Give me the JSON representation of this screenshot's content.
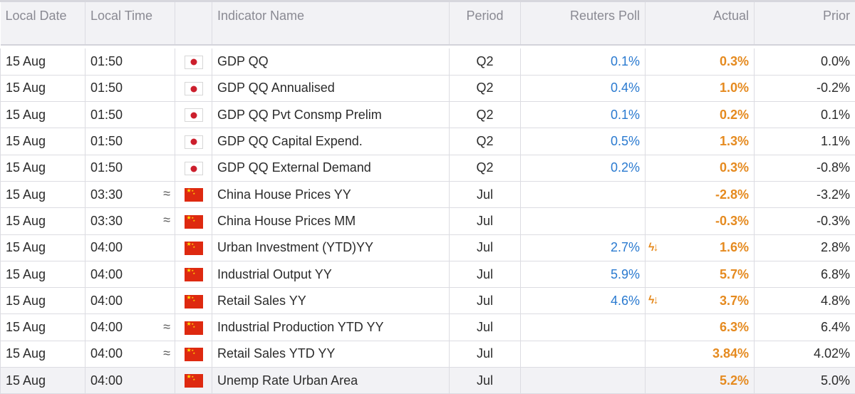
{
  "columns": {
    "date": "Local Date",
    "time": "Local Time",
    "name": "Indicator Name",
    "period": "Period",
    "poll": "Reuters Poll",
    "actual": "Actual",
    "prior": "Prior"
  },
  "colors": {
    "poll": "#2a7ad0",
    "actual": "#e58a1f"
  },
  "rows": [
    {
      "date": "15 Aug",
      "time": "01:50",
      "approx": false,
      "flag": "japan-flag-icon",
      "name": "GDP QQ",
      "period": "Q2",
      "poll": "0.1%",
      "surprise": false,
      "actual": "0.3%",
      "prior": "0.0%"
    },
    {
      "date": "15 Aug",
      "time": "01:50",
      "approx": false,
      "flag": "japan-flag-icon",
      "name": "GDP QQ Annualised",
      "period": "Q2",
      "poll": "0.4%",
      "surprise": false,
      "actual": "1.0%",
      "prior": "-0.2%"
    },
    {
      "date": "15 Aug",
      "time": "01:50",
      "approx": false,
      "flag": "japan-flag-icon",
      "name": "GDP QQ Pvt Consmp Prelim",
      "period": "Q2",
      "poll": "0.1%",
      "surprise": false,
      "actual": "0.2%",
      "prior": "0.1%"
    },
    {
      "date": "15 Aug",
      "time": "01:50",
      "approx": false,
      "flag": "japan-flag-icon",
      "name": "GDP QQ Capital Expend.",
      "period": "Q2",
      "poll": "0.5%",
      "surprise": false,
      "actual": "1.3%",
      "prior": "1.1%"
    },
    {
      "date": "15 Aug",
      "time": "01:50",
      "approx": false,
      "flag": "japan-flag-icon",
      "name": "GDP QQ External Demand",
      "period": "Q2",
      "poll": "0.2%",
      "surprise": false,
      "actual": "0.3%",
      "prior": "-0.8%"
    },
    {
      "date": "15 Aug",
      "time": "03:30",
      "approx": true,
      "flag": "china-flag-icon",
      "name": "China House Prices YY",
      "period": "Jul",
      "poll": "",
      "surprise": false,
      "actual": "-2.8%",
      "prior": "-3.2%"
    },
    {
      "date": "15 Aug",
      "time": "03:30",
      "approx": true,
      "flag": "china-flag-icon",
      "name": "China House Prices MM",
      "period": "Jul",
      "poll": "",
      "surprise": false,
      "actual": "-0.3%",
      "prior": "-0.3%"
    },
    {
      "date": "15 Aug",
      "time": "04:00",
      "approx": false,
      "flag": "china-flag-icon",
      "name": "Urban Investment (YTD)YY",
      "period": "Jul",
      "poll": "2.7%",
      "surprise": true,
      "actual": "1.6%",
      "prior": "2.8%"
    },
    {
      "date": "15 Aug",
      "time": "04:00",
      "approx": false,
      "flag": "china-flag-icon",
      "name": "Industrial Output YY",
      "period": "Jul",
      "poll": "5.9%",
      "surprise": false,
      "actual": "5.7%",
      "prior": "6.8%"
    },
    {
      "date": "15 Aug",
      "time": "04:00",
      "approx": false,
      "flag": "china-flag-icon",
      "name": "Retail Sales YY",
      "period": "Jul",
      "poll": "4.6%",
      "surprise": true,
      "actual": "3.7%",
      "prior": "4.8%"
    },
    {
      "date": "15 Aug",
      "time": "04:00",
      "approx": true,
      "flag": "china-flag-icon",
      "name": "Industrial Production YTD YY",
      "period": "Jul",
      "poll": "",
      "surprise": false,
      "actual": "6.3%",
      "prior": "6.4%"
    },
    {
      "date": "15 Aug",
      "time": "04:00",
      "approx": true,
      "flag": "china-flag-icon",
      "name": "Retail Sales YTD YY",
      "period": "Jul",
      "poll": "",
      "surprise": false,
      "actual": "3.84%",
      "prior": "4.02%"
    },
    {
      "date": "15 Aug",
      "time": "04:00",
      "approx": false,
      "flag": "china-flag-icon",
      "name": "Unemp Rate Urban Area",
      "period": "Jul",
      "poll": "",
      "surprise": false,
      "actual": "5.2%",
      "prior": "5.0%"
    }
  ]
}
